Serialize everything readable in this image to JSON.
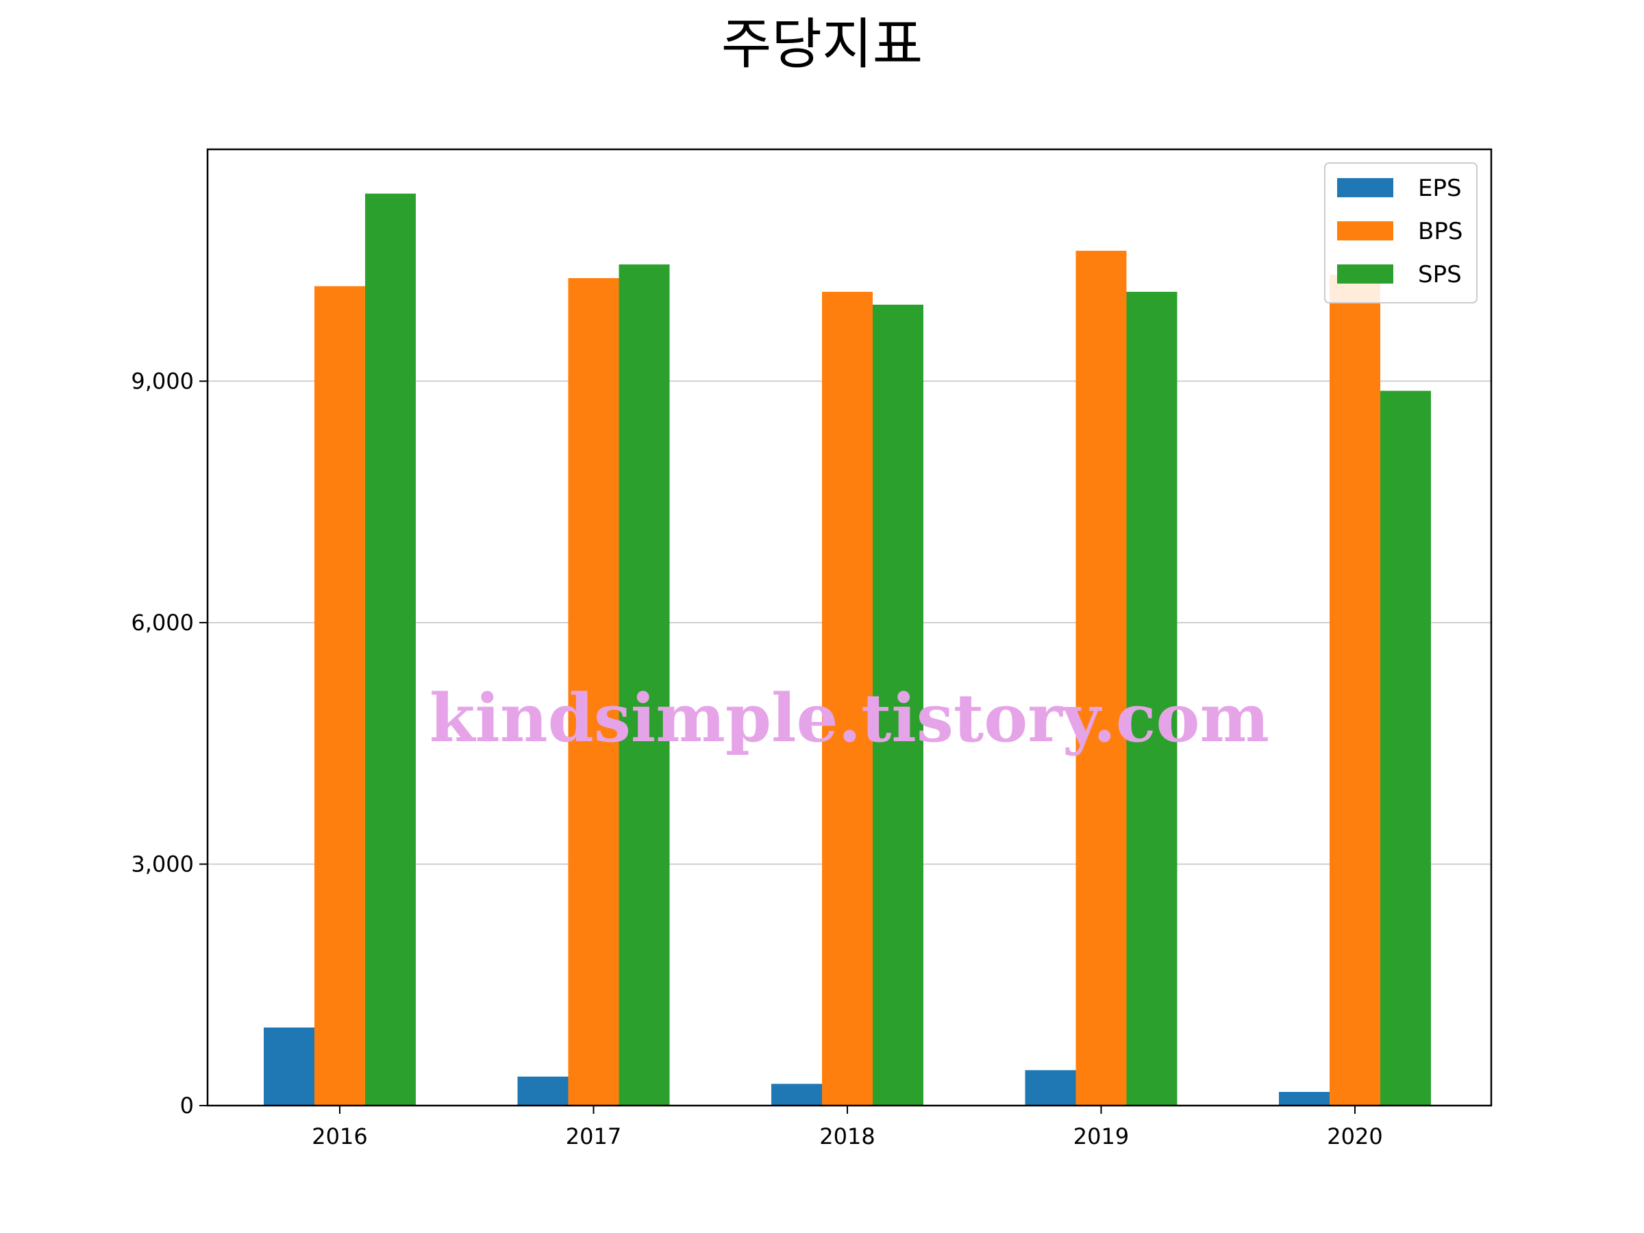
{
  "chart_data": {
    "type": "bar",
    "title": "주당지표",
    "categories": [
      "2016",
      "2017",
      "2018",
      "2019",
      "2020"
    ],
    "series": [
      {
        "name": "EPS",
        "color": "#1f77b4",
        "values": [
          970,
          360,
          270,
          440,
          170
        ]
      },
      {
        "name": "BPS",
        "color": "#ff7f0e",
        "values": [
          10180,
          10280,
          10110,
          10620,
          10320
        ]
      },
      {
        "name": "SPS",
        "color": "#2ca02c",
        "values": [
          11330,
          10450,
          9950,
          10110,
          8880
        ]
      }
    ],
    "ylim": [
      0,
      11880
    ],
    "yticks": [
      0,
      3000,
      6000,
      9000
    ],
    "ytick_labels": [
      "0",
      "3,000",
      "6,000",
      "9,000"
    ],
    "grid": "horizontal",
    "legend_position": "top-right"
  },
  "watermark": "kindsimple.tistory.com"
}
